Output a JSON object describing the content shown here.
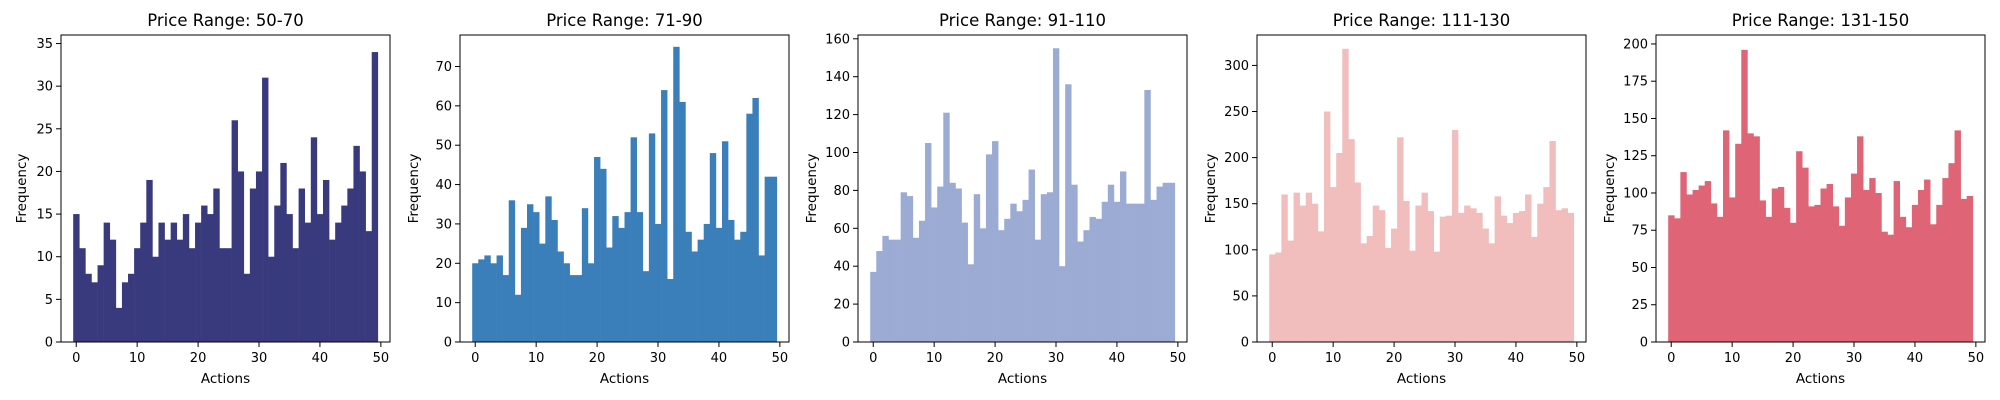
{
  "chart_data": [
    {
      "type": "bar",
      "title": "Price Range: 50-70",
      "xlabel": "Actions",
      "ylabel": "Frequency",
      "color": "#393A7E",
      "x": [
        0,
        1,
        2,
        3,
        4,
        5,
        6,
        7,
        8,
        9,
        10,
        11,
        12,
        13,
        14,
        15,
        16,
        17,
        18,
        19,
        20,
        21,
        22,
        23,
        24,
        25,
        26,
        27,
        28,
        29,
        30,
        31,
        32,
        33,
        34,
        35,
        36,
        37,
        38,
        39,
        40,
        41,
        42,
        43,
        44,
        45,
        46,
        47,
        48,
        49
      ],
      "values": [
        15,
        11,
        8,
        7,
        9,
        14,
        12,
        4,
        7,
        8,
        11,
        14,
        19,
        10,
        14,
        12,
        14,
        12,
        15,
        11,
        14,
        16,
        15,
        18,
        11,
        11,
        26,
        20,
        8,
        18,
        20,
        31,
        10,
        16,
        21,
        15,
        11,
        18,
        14,
        24,
        15,
        19,
        12,
        14,
        16,
        18,
        23,
        20,
        13,
        34
      ],
      "xlim": [
        -2.5,
        51.5
      ],
      "ylim": [
        0,
        36
      ],
      "xticks": [
        0,
        10,
        20,
        30,
        40,
        50
      ],
      "xtick_labels": [
        "0",
        "10",
        "20",
        "30",
        "40",
        "50"
      ],
      "yticks": [
        0,
        5,
        10,
        15,
        20,
        25,
        30,
        35
      ],
      "ytick_labels": [
        "0",
        "5",
        "10",
        "15",
        "20",
        "25",
        "30",
        "35"
      ],
      "grid": false
    },
    {
      "type": "bar",
      "title": "Price Range: 71-90",
      "xlabel": "Actions",
      "ylabel": "Frequency",
      "color": "#3A7FBA",
      "x": [
        0,
        1,
        2,
        3,
        4,
        5,
        6,
        7,
        8,
        9,
        10,
        11,
        12,
        13,
        14,
        15,
        16,
        17,
        18,
        19,
        20,
        21,
        22,
        23,
        24,
        25,
        26,
        27,
        28,
        29,
        30,
        31,
        32,
        33,
        34,
        35,
        36,
        37,
        38,
        39,
        40,
        41,
        42,
        43,
        44,
        45,
        46,
        47,
        48,
        49
      ],
      "values": [
        20,
        21,
        22,
        20,
        22,
        17,
        36,
        12,
        29,
        35,
        33,
        25,
        37,
        31,
        23,
        20,
        17,
        17,
        34,
        20,
        47,
        44,
        24,
        32,
        29,
        33,
        52,
        33,
        18,
        53,
        30,
        64,
        16,
        75,
        61,
        28,
        23,
        26,
        30,
        48,
        29,
        51,
        31,
        26,
        28,
        58,
        62,
        22,
        42,
        42
      ],
      "xlim": [
        -2.5,
        51.5
      ],
      "ylim": [
        0,
        78
      ],
      "xticks": [
        0,
        10,
        20,
        30,
        40,
        50
      ],
      "xtick_labels": [
        "0",
        "10",
        "20",
        "30",
        "40",
        "50"
      ],
      "yticks": [
        0,
        10,
        20,
        30,
        40,
        50,
        60,
        70
      ],
      "ytick_labels": [
        "0",
        "10",
        "20",
        "30",
        "40",
        "50",
        "60",
        "70"
      ],
      "grid": false
    },
    {
      "type": "bar",
      "title": "Price Range: 91-110",
      "xlabel": "Actions",
      "ylabel": "Frequency",
      "color": "#9BABD3",
      "x": [
        0,
        1,
        2,
        3,
        4,
        5,
        6,
        7,
        8,
        9,
        10,
        11,
        12,
        13,
        14,
        15,
        16,
        17,
        18,
        19,
        20,
        21,
        22,
        23,
        24,
        25,
        26,
        27,
        28,
        29,
        30,
        31,
        32,
        33,
        34,
        35,
        36,
        37,
        38,
        39,
        40,
        41,
        42,
        43,
        44,
        45,
        46,
        47,
        48,
        49
      ],
      "values": [
        37,
        48,
        56,
        54,
        54,
        79,
        77,
        55,
        64,
        105,
        71,
        82,
        121,
        84,
        81,
        63,
        41,
        78,
        60,
        99,
        106,
        59,
        65,
        73,
        69,
        75,
        91,
        54,
        78,
        79,
        155,
        40,
        136,
        83,
        53,
        59,
        66,
        65,
        74,
        83,
        74,
        90,
        73,
        73,
        73,
        133,
        75,
        82,
        84,
        84
      ],
      "xlim": [
        -2.5,
        51.5
      ],
      "ylim": [
        0,
        162
      ],
      "xticks": [
        0,
        10,
        20,
        30,
        40,
        50
      ],
      "xtick_labels": [
        "0",
        "10",
        "20",
        "30",
        "40",
        "50"
      ],
      "yticks": [
        0,
        20,
        40,
        60,
        80,
        100,
        120,
        140,
        160
      ],
      "ytick_labels": [
        "0",
        "20",
        "40",
        "60",
        "80",
        "100",
        "120",
        "140",
        "160"
      ],
      "grid": false
    },
    {
      "type": "bar",
      "title": "Price Range: 111-130",
      "xlabel": "Actions",
      "ylabel": "Frequency",
      "color": "#F1BDBD",
      "x": [
        0,
        1,
        2,
        3,
        4,
        5,
        6,
        7,
        8,
        9,
        10,
        11,
        12,
        13,
        14,
        15,
        16,
        17,
        18,
        19,
        20,
        21,
        22,
        23,
        24,
        25,
        26,
        27,
        28,
        29,
        30,
        31,
        32,
        33,
        34,
        35,
        36,
        37,
        38,
        39,
        40,
        41,
        42,
        43,
        44,
        45,
        46,
        47,
        48,
        49
      ],
      "values": [
        95,
        97,
        160,
        110,
        162,
        148,
        162,
        150,
        120,
        250,
        168,
        205,
        318,
        220,
        173,
        107,
        115,
        148,
        143,
        102,
        123,
        222,
        153,
        99,
        148,
        162,
        142,
        98,
        136,
        137,
        230,
        140,
        148,
        145,
        140,
        123,
        107,
        158,
        137,
        129,
        140,
        142,
        160,
        114,
        150,
        168,
        218,
        143,
        145,
        140
      ],
      "xlim": [
        -2.5,
        51.5
      ],
      "ylim": [
        0,
        333
      ],
      "xticks": [
        0,
        10,
        20,
        30,
        40,
        50
      ],
      "xtick_labels": [
        "0",
        "10",
        "20",
        "30",
        "40",
        "50"
      ],
      "yticks": [
        0,
        50,
        100,
        150,
        200,
        250,
        300
      ],
      "ytick_labels": [
        "0",
        "50",
        "100",
        "150",
        "200",
        "250",
        "300"
      ],
      "grid": false
    },
    {
      "type": "bar",
      "title": "Price Range: 131-150",
      "xlabel": "Actions",
      "ylabel": "Frequency",
      "color": "#DE6476",
      "x": [
        0,
        1,
        2,
        3,
        4,
        5,
        6,
        7,
        8,
        9,
        10,
        11,
        12,
        13,
        14,
        15,
        16,
        17,
        18,
        19,
        20,
        21,
        22,
        23,
        24,
        25,
        26,
        27,
        28,
        29,
        30,
        31,
        32,
        33,
        34,
        35,
        36,
        37,
        38,
        39,
        40,
        41,
        42,
        43,
        44,
        45,
        46,
        47,
        48,
        49
      ],
      "values": [
        85,
        83,
        114,
        99,
        102,
        105,
        108,
        93,
        84,
        142,
        97,
        133,
        196,
        140,
        138,
        95,
        84,
        103,
        104,
        90,
        80,
        128,
        117,
        91,
        92,
        103,
        106,
        91,
        78,
        97,
        113,
        138,
        102,
        110,
        100,
        74,
        72,
        108,
        84,
        77,
        92,
        102,
        109,
        79,
        92,
        110,
        120,
        142,
        96,
        98
      ],
      "xlim": [
        -2.5,
        51.5
      ],
      "ylim": [
        0,
        206
      ],
      "xticks": [
        0,
        10,
        20,
        30,
        40,
        50
      ],
      "xtick_labels": [
        "0",
        "10",
        "20",
        "30",
        "40",
        "50"
      ],
      "yticks": [
        0,
        25,
        50,
        75,
        100,
        125,
        150,
        175,
        200
      ],
      "ytick_labels": [
        "0",
        "25",
        "50",
        "75",
        "100",
        "125",
        "150",
        "175",
        "200"
      ],
      "grid": false
    }
  ]
}
